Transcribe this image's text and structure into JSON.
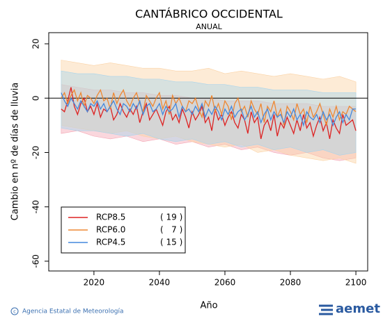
{
  "chart_data": {
    "type": "line",
    "title": "CANTÁBRICO OCCIDENTAL",
    "subtitle": "ANUAL",
    "x_label": "Año",
    "y_label": "Cambio en nº de días de lluvia",
    "xlim": [
      2006.2,
      2103.6
    ],
    "ylim": [
      -63.6,
      24.1
    ],
    "xticks": [
      2020,
      2040,
      2060,
      2080,
      2100
    ],
    "yticks": [
      20,
      0,
      -20,
      -40,
      -60
    ],
    "zero_line": true,
    "legend": "lower left",
    "x": [
      2010,
      2011,
      2012,
      2013,
      2014,
      2015,
      2016,
      2017,
      2018,
      2019,
      2020,
      2021,
      2022,
      2023,
      2024,
      2025,
      2026,
      2027,
      2028,
      2029,
      2030,
      2031,
      2032,
      2033,
      2034,
      2035,
      2036,
      2037,
      2038,
      2039,
      2040,
      2041,
      2042,
      2043,
      2044,
      2045,
      2046,
      2047,
      2048,
      2049,
      2050,
      2051,
      2052,
      2053,
      2054,
      2055,
      2056,
      2057,
      2058,
      2059,
      2060,
      2061,
      2062,
      2063,
      2064,
      2065,
      2066,
      2067,
      2068,
      2069,
      2070,
      2071,
      2072,
      2073,
      2074,
      2075,
      2076,
      2077,
      2078,
      2079,
      2080,
      2081,
      2082,
      2083,
      2084,
      2085,
      2086,
      2087,
      2088,
      2089,
      2090,
      2091,
      2092,
      2093,
      2094,
      2095,
      2096,
      2097,
      2098,
      2099,
      2100
    ],
    "band_x": [
      2010,
      2015,
      2020,
      2025,
      2030,
      2035,
      2040,
      2045,
      2050,
      2055,
      2060,
      2065,
      2070,
      2075,
      2080,
      2085,
      2090,
      2095,
      2100
    ],
    "series": [
      {
        "name": "RCP8.5",
        "count_label": "( 19 )",
        "color": "#dd2222",
        "band_color": "#f4a6b4",
        "values": [
          -4,
          -5,
          -1,
          4,
          -3,
          -6,
          -2,
          0,
          -5,
          -3,
          -6,
          -2,
          -7,
          -4,
          -5,
          -3,
          -8,
          -6,
          -2,
          -5,
          -7,
          -4,
          -6,
          -3,
          -9,
          -5,
          -2,
          -8,
          -6,
          -4,
          -7,
          -10,
          -5,
          -3,
          -8,
          -6,
          -9,
          -4,
          -7,
          -11,
          -5,
          -8,
          -6,
          -3,
          -9,
          -7,
          -12,
          -4,
          -8,
          -6,
          -10,
          -7,
          -5,
          -9,
          -11,
          -6,
          -8,
          -13,
          -5,
          -9,
          -7,
          -15,
          -10,
          -8,
          -12,
          -6,
          -14,
          -9,
          -11,
          -7,
          -10,
          -13,
          -8,
          -12,
          -6,
          -11,
          -9,
          -14,
          -10,
          -7,
          -12,
          -9,
          -15,
          -8,
          -11,
          -13,
          -6,
          -10,
          -9,
          -8,
          -12
        ],
        "lower": [
          -13,
          -12,
          -14,
          -15,
          -14,
          -16,
          -15,
          -17,
          -16,
          -18,
          -17,
          -19,
          -18,
          -20,
          -21,
          -20,
          -22,
          -23,
          -22
        ],
        "upper": [
          5,
          4,
          3,
          3,
          2,
          2,
          1,
          1,
          0,
          0,
          -1,
          -1,
          -1,
          -2,
          -2,
          -2,
          -3,
          -3,
          -3
        ]
      },
      {
        "name": "RCP6.0",
        "count_label": "(   7 )",
        "color": "#ee8833",
        "band_color": "#fbd2a4",
        "values": [
          0,
          2,
          -2,
          1,
          3,
          -1,
          2,
          -3,
          1,
          0,
          -2,
          1,
          3,
          -1,
          0,
          -4,
          2,
          -2,
          1,
          3,
          -1,
          -3,
          0,
          2,
          -2,
          -5,
          1,
          -1,
          -3,
          0,
          2,
          -4,
          -1,
          -6,
          1,
          -2,
          0,
          -3,
          -5,
          -1,
          -2,
          0,
          -4,
          -7,
          -1,
          -3,
          1,
          -5,
          -2,
          -6,
          -1,
          -3,
          -8,
          -2,
          0,
          -5,
          -3,
          -7,
          -1,
          -4,
          -6,
          -2,
          -9,
          -3,
          -5,
          -1,
          -7,
          -4,
          -10,
          -3,
          -5,
          -8,
          -2,
          -6,
          -4,
          -9,
          -3,
          -7,
          -5,
          -2,
          -6,
          -10,
          -4,
          -7,
          -3,
          -8,
          -5,
          -6,
          -3,
          -4,
          -5
        ],
        "lower": [
          -10,
          -11,
          -12,
          -13,
          -12,
          -14,
          -15,
          -14,
          -16,
          -17,
          -18,
          -17,
          -20,
          -19,
          -21,
          -22,
          -23,
          -22,
          -24
        ],
        "upper": [
          14,
          13,
          12,
          13,
          12,
          11,
          11,
          10,
          10,
          11,
          9,
          10,
          9,
          8,
          9,
          8,
          7,
          8,
          6
        ]
      },
      {
        "name": "RCP4.5",
        "count_label": "( 15 )",
        "color": "#4488dd",
        "band_color": "#a8d4ec",
        "values": [
          2,
          -1,
          -3,
          0,
          -2,
          -4,
          -1,
          -3,
          -5,
          -2,
          -3,
          -1,
          -4,
          -2,
          -5,
          -3,
          -1,
          -4,
          -6,
          -2,
          -3,
          -5,
          -2,
          -4,
          -1,
          -6,
          -3,
          -2,
          -5,
          -4,
          -2,
          -6,
          -3,
          -5,
          -4,
          -2,
          -7,
          -3,
          -5,
          -4,
          -6,
          -3,
          -5,
          -2,
          -7,
          -4,
          -6,
          -3,
          -5,
          -8,
          -4,
          -6,
          -3,
          -7,
          -5,
          -4,
          -8,
          -6,
          -3,
          -7,
          -5,
          -9,
          -6,
          -4,
          -8,
          -5,
          -7,
          -6,
          -9,
          -5,
          -7,
          -4,
          -8,
          -6,
          -10,
          -5,
          -7,
          -8,
          -6,
          -9,
          -5,
          -8,
          -6,
          -10,
          -7,
          -5,
          -9,
          -6,
          -8,
          -4,
          -4
        ],
        "lower": [
          -11,
          -12,
          -12,
          -13,
          -14,
          -13,
          -15,
          -16,
          -15,
          -17,
          -16,
          -18,
          -17,
          -19,
          -18,
          -20,
          -19,
          -21,
          -20
        ],
        "upper": [
          10,
          9,
          9,
          8,
          8,
          7,
          7,
          6,
          6,
          5,
          5,
          4,
          4,
          3,
          3,
          3,
          2,
          2,
          2
        ]
      }
    ]
  },
  "footer": {
    "agency": "Agencia Estatal de Meteorología",
    "logo": "aemet"
  }
}
